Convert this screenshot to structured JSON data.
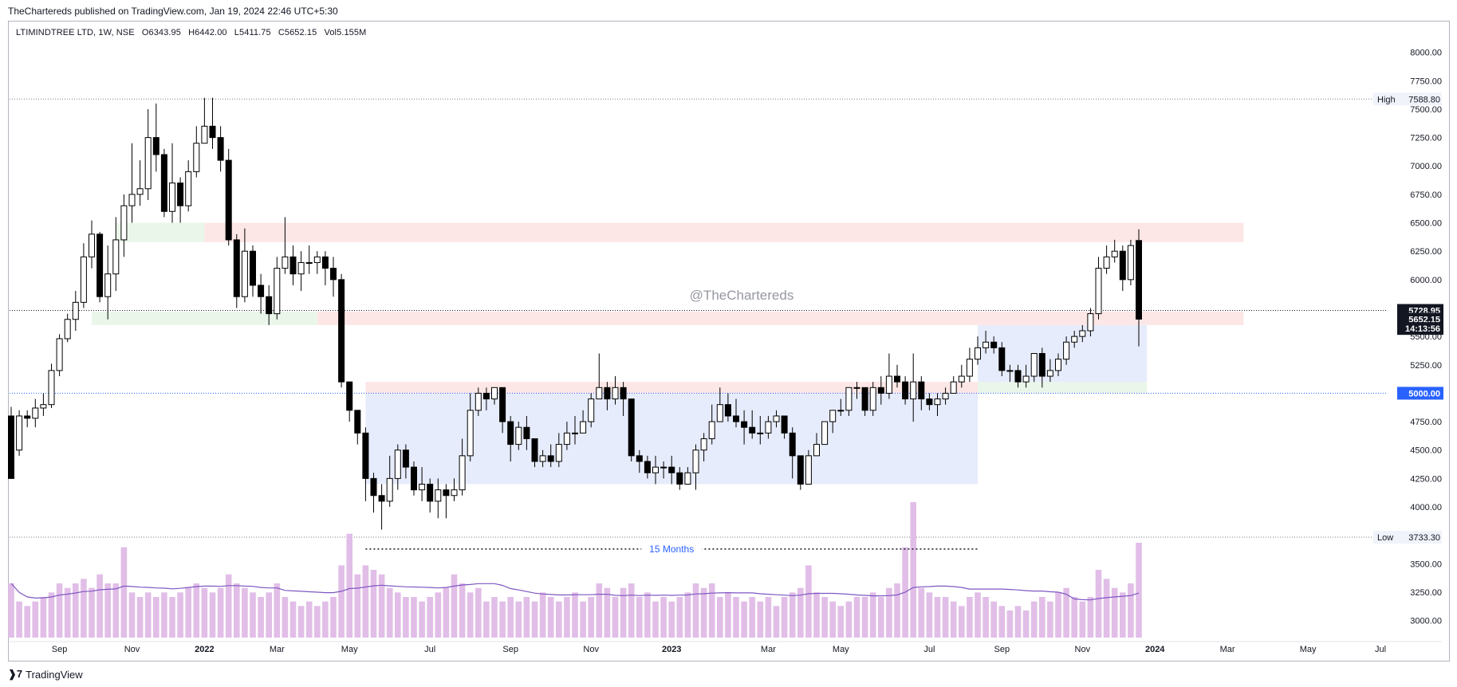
{
  "header": {
    "publisher": "TheChartereds published on TradingView.com, Jan 19, 2024 22:46 UTC+5:30"
  },
  "legend": {
    "symbol": "LTIMINDTREE LTD, 1W, NSE",
    "open": "O6343.95",
    "high": "H6442.00",
    "low": "L5411.75",
    "close": "C5652.15",
    "volume": "Vol5.155M"
  },
  "watermark": "@TheChartereds",
  "footer": {
    "brand": "TradingView"
  },
  "colors": {
    "up_body": "#ffffff",
    "down_body": "#000000",
    "wick": "#000000",
    "volume": "#e1bee7",
    "volume_ma": "#7e57c2",
    "supply_zone": "#fde2e2",
    "demand_zone": "#e6f4e6",
    "range_box": "#dfe6fb",
    "level_line": "#2962ff"
  },
  "chart_data": {
    "type": "candlestick",
    "interval": "1W",
    "ylim": [
      2850,
      8250
    ],
    "y_ticks": [
      3000,
      3250,
      3500,
      3750,
      4000,
      4250,
      4500,
      4750,
      5000,
      5250,
      5500,
      5750,
      6000,
      6250,
      6500,
      6750,
      7000,
      7250,
      7500,
      7750,
      8000
    ],
    "y_tick_labels": [
      "3000.00",
      "3250.00",
      "3500.00",
      "3750.00",
      "4000.00",
      "4250.00",
      "4500.00",
      "4750.00",
      "5000.00",
      "5250.00",
      "5500.00",
      "5750.00",
      "6000.00",
      "6250.00",
      "6500.00",
      "6750.00",
      "7000.00",
      "7250.00",
      "7500.00",
      "7750.00",
      "8000.00"
    ],
    "x_labels": [
      {
        "label": "Sep",
        "week": 6
      },
      {
        "label": "Nov",
        "week": 15
      },
      {
        "label": "2022",
        "week": 24
      },
      {
        "label": "Mar",
        "week": 33
      },
      {
        "label": "May",
        "week": 42
      },
      {
        "label": "Jul",
        "week": 52
      },
      {
        "label": "Sep",
        "week": 62
      },
      {
        "label": "Nov",
        "week": 72
      },
      {
        "label": "2023",
        "week": 82
      },
      {
        "label": "Mar",
        "week": 94
      },
      {
        "label": "May",
        "week": 103
      },
      {
        "label": "Jul",
        "week": 114
      },
      {
        "label": "Sep",
        "week": 123
      },
      {
        "label": "Nov",
        "week": 133
      },
      {
        "label": "2024",
        "week": 142
      },
      {
        "label": "Mar",
        "week": 151
      },
      {
        "label": "May",
        "week": 161
      },
      {
        "label": "Jul",
        "week": 170
      }
    ],
    "candles": [
      [
        4800,
        4250,
        4880,
        4500,
        0.6
      ],
      [
        4500,
        4800,
        4850,
        4450,
        0.4
      ],
      [
        4800,
        4780,
        4850,
        4700,
        0.35
      ],
      [
        4780,
        4870,
        4950,
        4700,
        0.4
      ],
      [
        4870,
        4900,
        5000,
        4800,
        0.45
      ],
      [
        4900,
        5200,
        5260,
        4870,
        0.5
      ],
      [
        5200,
        5480,
        5520,
        5150,
        0.6
      ],
      [
        5480,
        5650,
        5700,
        5450,
        0.55
      ],
      [
        5650,
        5800,
        5900,
        5550,
        0.6
      ],
      [
        5800,
        6200,
        6320,
        5750,
        0.65
      ],
      [
        6200,
        6400,
        6520,
        6100,
        0.55
      ],
      [
        6400,
        5850,
        6420,
        5800,
        0.7
      ],
      [
        5850,
        6050,
        6300,
        5650,
        0.6
      ],
      [
        6050,
        6350,
        6550,
        5900,
        0.6
      ],
      [
        6350,
        6650,
        6750,
        6200,
        1.0
      ],
      [
        6650,
        6750,
        7200,
        6500,
        0.5
      ],
      [
        6750,
        6800,
        7050,
        6650,
        0.45
      ],
      [
        6800,
        7250,
        7500,
        6700,
        0.5
      ],
      [
        7250,
        7100,
        7550,
        6950,
        0.45
      ],
      [
        7100,
        6600,
        7150,
        6550,
        0.5
      ],
      [
        6600,
        6850,
        7200,
        6500,
        0.45
      ],
      [
        6850,
        6650,
        6900,
        6500,
        0.5
      ],
      [
        6650,
        6950,
        7050,
        6600,
        0.55
      ],
      [
        6950,
        7200,
        7350,
        6900,
        0.6
      ],
      [
        7200,
        7350,
        7600,
        7200,
        0.55
      ],
      [
        7350,
        7250,
        7600,
        7150,
        0.5
      ],
      [
        7250,
        7050,
        7350,
        6950,
        0.55
      ],
      [
        7050,
        6350,
        7150,
        6300,
        0.7
      ],
      [
        6350,
        5850,
        6400,
        5750,
        0.6
      ],
      [
        5850,
        6250,
        6450,
        5800,
        0.55
      ],
      [
        6250,
        5950,
        6300,
        5850,
        0.5
      ],
      [
        5950,
        5850,
        6050,
        5700,
        0.45
      ],
      [
        5850,
        5700,
        5950,
        5600,
        0.5
      ],
      [
        5700,
        6100,
        6200,
        5650,
        0.6
      ],
      [
        6100,
        6200,
        6550,
        6050,
        0.45
      ],
      [
        6200,
        6050,
        6300,
        5950,
        0.4
      ],
      [
        6050,
        6150,
        6250,
        5900,
        0.35
      ],
      [
        6150,
        6150,
        6300,
        6050,
        0.4
      ],
      [
        6150,
        6200,
        6250,
        6050,
        0.35
      ],
      [
        6200,
        6100,
        6250,
        5950,
        0.4
      ],
      [
        6100,
        6000,
        6200,
        5850,
        0.45
      ],
      [
        6000,
        5100,
        6050,
        5050,
        0.8
      ],
      [
        5100,
        4850,
        5100,
        4750,
        1.15
      ],
      [
        4850,
        4650,
        4850,
        4550,
        0.7
      ],
      [
        4650,
        4250,
        4700,
        4050,
        0.8
      ],
      [
        4250,
        4100,
        4300,
        3950,
        0.75
      ],
      [
        4100,
        4050,
        4200,
        3800,
        0.7
      ],
      [
        4050,
        4250,
        4450,
        4000,
        0.55
      ],
      [
        4250,
        4500,
        4550,
        4150,
        0.5
      ],
      [
        4500,
        4350,
        4550,
        4250,
        0.45
      ],
      [
        4350,
        4150,
        4400,
        4100,
        0.45
      ],
      [
        4150,
        4200,
        4350,
        4050,
        0.4
      ],
      [
        4200,
        4050,
        4250,
        3950,
        0.45
      ],
      [
        4050,
        4150,
        4250,
        3900,
        0.5
      ],
      [
        4150,
        4100,
        4200,
        3900,
        0.55
      ],
      [
        4100,
        4150,
        4250,
        4050,
        0.7
      ],
      [
        4150,
        4450,
        4600,
        4100,
        0.6
      ],
      [
        4450,
        4850,
        5000,
        4400,
        0.5
      ],
      [
        4850,
        5000,
        5050,
        4800,
        0.55
      ],
      [
        5000,
        4950,
        5050,
        4850,
        0.4
      ],
      [
        4950,
        5050,
        5050,
        4900,
        0.45
      ],
      [
        5050,
        4750,
        5050,
        4650,
        0.4
      ],
      [
        4750,
        4550,
        4800,
        4400,
        0.45
      ],
      [
        4550,
        4700,
        4750,
        4500,
        0.4
      ],
      [
        4700,
        4600,
        4800,
        4500,
        0.45
      ],
      [
        4600,
        4400,
        4600,
        4350,
        0.4
      ],
      [
        4400,
        4450,
        4500,
        4350,
        0.5
      ],
      [
        4450,
        4400,
        4550,
        4350,
        0.45
      ],
      [
        4400,
        4550,
        4650,
        4350,
        0.4
      ],
      [
        4550,
        4650,
        4750,
        4500,
        0.45
      ],
      [
        4650,
        4650,
        4800,
        4550,
        0.5
      ],
      [
        4650,
        4750,
        4850,
        4650,
        0.4
      ],
      [
        4750,
        4950,
        5000,
        4700,
        0.45
      ],
      [
        4950,
        5050,
        5350,
        4950,
        0.6
      ],
      [
        5050,
        4950,
        5100,
        4850,
        0.55
      ],
      [
        4950,
        5050,
        5150,
        4900,
        0.45
      ],
      [
        5050,
        4950,
        5100,
        4800,
        0.55
      ],
      [
        4950,
        4450,
        4950,
        4400,
        0.6
      ],
      [
        4450,
        4400,
        4500,
        4300,
        0.45
      ],
      [
        4400,
        4300,
        4450,
        4250,
        0.5
      ],
      [
        4300,
        4350,
        4450,
        4200,
        0.4
      ],
      [
        4350,
        4350,
        4400,
        4250,
        0.45
      ],
      [
        4350,
        4300,
        4450,
        4200,
        0.4
      ],
      [
        4300,
        4200,
        4350,
        4150,
        0.45
      ],
      [
        4200,
        4300,
        4350,
        4200,
        0.5
      ],
      [
        4300,
        4500,
        4550,
        4150,
        0.6
      ],
      [
        4500,
        4600,
        4650,
        4400,
        0.55
      ],
      [
        4600,
        4750,
        4900,
        4550,
        0.6
      ],
      [
        4750,
        4900,
        5050,
        4750,
        0.45
      ],
      [
        4900,
        4800,
        5000,
        4750,
        0.5
      ],
      [
        4800,
        4750,
        4950,
        4700,
        0.45
      ],
      [
        4750,
        4700,
        4850,
        4550,
        0.4
      ],
      [
        4700,
        4650,
        4850,
        4600,
        0.45
      ],
      [
        4650,
        4650,
        4800,
        4550,
        0.4
      ],
      [
        4650,
        4750,
        4800,
        4600,
        0.45
      ],
      [
        4750,
        4800,
        4850,
        4700,
        0.35
      ],
      [
        4800,
        4650,
        4800,
        4600,
        0.45
      ],
      [
        4650,
        4450,
        4700,
        4250,
        0.5
      ],
      [
        4450,
        4200,
        4450,
        4150,
        0.55
      ],
      [
        4200,
        4450,
        4500,
        4200,
        0.8
      ],
      [
        4450,
        4550,
        4650,
        4450,
        0.5
      ],
      [
        4550,
        4750,
        4750,
        4550,
        0.45
      ],
      [
        4750,
        4850,
        4850,
        4650,
        0.4
      ],
      [
        4850,
        4850,
        4950,
        4800,
        0.35
      ],
      [
        4850,
        5050,
        5050,
        4800,
        0.4
      ],
      [
        5050,
        5050,
        5100,
        4950,
        0.45
      ],
      [
        5050,
        4850,
        5050,
        4800,
        0.45
      ],
      [
        4850,
        5050,
        5100,
        4800,
        0.5
      ],
      [
        5050,
        5000,
        5150,
        4900,
        0.45
      ],
      [
        5000,
        5150,
        5350,
        4950,
        0.55
      ],
      [
        5150,
        5100,
        5250,
        5050,
        0.6
      ],
      [
        5100,
        4950,
        5150,
        4900,
        1.0
      ],
      [
        4950,
        5100,
        5350,
        4750,
        1.5
      ],
      [
        5100,
        4950,
        5150,
        4850,
        0.55
      ],
      [
        4950,
        4900,
        5000,
        4850,
        0.5
      ],
      [
        4900,
        4950,
        5000,
        4800,
        0.45
      ],
      [
        4950,
        5000,
        5050,
        4900,
        0.45
      ],
      [
        5000,
        5100,
        5150,
        5000,
        0.4
      ],
      [
        5100,
        5150,
        5250,
        5050,
        0.35
      ],
      [
        5150,
        5300,
        5400,
        5100,
        0.45
      ],
      [
        5300,
        5400,
        5500,
        5250,
        0.5
      ],
      [
        5400,
        5450,
        5550,
        5350,
        0.45
      ],
      [
        5450,
        5400,
        5500,
        5350,
        0.4
      ],
      [
        5400,
        5200,
        5450,
        5150,
        0.35
      ],
      [
        5200,
        5200,
        5250,
        5100,
        0.3
      ],
      [
        5200,
        5100,
        5250,
        5050,
        0.35
      ],
      [
        5100,
        5150,
        5250,
        5050,
        0.3
      ],
      [
        5150,
        5350,
        5350,
        5100,
        0.4
      ],
      [
        5350,
        5150,
        5400,
        5050,
        0.45
      ],
      [
        5150,
        5200,
        5300,
        5100,
        0.4
      ],
      [
        5200,
        5300,
        5350,
        5150,
        0.5
      ],
      [
        5300,
        5450,
        5500,
        5250,
        0.55
      ],
      [
        5450,
        5500,
        5550,
        5400,
        0.45
      ],
      [
        5500,
        5550,
        5600,
        5450,
        0.4
      ],
      [
        5550,
        5700,
        5750,
        5500,
        0.45
      ],
      [
        5700,
        6100,
        6200,
        5650,
        0.75
      ],
      [
        6100,
        6200,
        6300,
        6050,
        0.65
      ],
      [
        6200,
        6250,
        6350,
        6150,
        0.55
      ],
      [
        6250,
        6000,
        6300,
        5900,
        0.5
      ],
      [
        6000,
        6300,
        6350,
        5950,
        0.6
      ],
      [
        6344,
        5652,
        6442,
        5412,
        1.05
      ]
    ],
    "candle_low_annotations": [
      {
        "label": "Low",
        "value": "3733.30",
        "price": 3733.3
      },
      {
        "label": "High",
        "value": "7588.80",
        "price": 7588.8
      }
    ],
    "price_labels": [
      {
        "value": "5728.95",
        "price": 5728.95,
        "style": "dark"
      },
      {
        "value": "5652.15",
        "price": 5652.15,
        "style": "dark"
      },
      {
        "value": "14:13:56",
        "price": 5570,
        "style": "dark"
      },
      {
        "value": "5000.00",
        "price": 5000,
        "style": "blue"
      }
    ],
    "zones": [
      {
        "type": "demand",
        "from_week": 13,
        "to_week": 24,
        "top": 6500,
        "bottom": 6330
      },
      {
        "type": "supply",
        "from_week": 24,
        "to_week": 153,
        "top": 6500,
        "bottom": 6330
      },
      {
        "type": "demand",
        "from_week": 10,
        "to_week": 38,
        "top": 5720,
        "bottom": 5600
      },
      {
        "type": "supply",
        "from_week": 38,
        "to_week": 153,
        "top": 5720,
        "bottom": 5600
      },
      {
        "type": "supply",
        "from_week": 44,
        "to_week": 120,
        "top": 5100,
        "bottom": 5000
      },
      {
        "type": "demand",
        "from_week": 120,
        "to_week": 141,
        "top": 5100,
        "bottom": 5000
      },
      {
        "type": "range",
        "from_week": 44,
        "to_week": 120,
        "top": 5000,
        "bottom": 4200
      },
      {
        "type": "range",
        "from_week": 120,
        "to_week": 141,
        "top": 5600,
        "bottom": 5100
      }
    ],
    "annotation": {
      "label": "15 Months",
      "from_week": 44,
      "to_week": 120,
      "price": 3650
    },
    "volume_max": 1.5
  }
}
